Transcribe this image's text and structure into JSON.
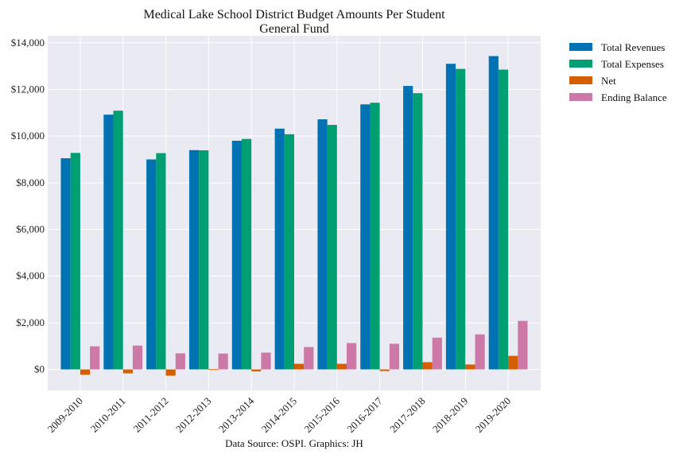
{
  "chart_data": {
    "type": "bar",
    "title": "Medical Lake School District Budget Amounts Per Student",
    "subtitle": "General Fund",
    "xlabel": "",
    "ylabel": "",
    "ylim": [
      -900,
      14300
    ],
    "yticks": [
      0,
      2000,
      4000,
      6000,
      8000,
      10000,
      12000,
      14000
    ],
    "ytick_labels": [
      "$0",
      "$2,000",
      "$4,000",
      "$6,000",
      "$8,000",
      "$10,000",
      "$12,000",
      "$14,000"
    ],
    "categories": [
      "2009-2010",
      "2010-2011",
      "2011-2012",
      "2012-2013",
      "2013-2014",
      "2014-2015",
      "2015-2016",
      "2016-2017",
      "2017-2018",
      "2018-2019",
      "2019-2020"
    ],
    "series": [
      {
        "name": "Total Revenues",
        "color": "#0072B2",
        "values": [
          9050,
          10920,
          9000,
          9400,
          9800,
          10320,
          10720,
          11360,
          12150,
          13100,
          13430
        ]
      },
      {
        "name": "Total Expenses",
        "color": "#009E73",
        "values": [
          9280,
          11090,
          9270,
          9390,
          9880,
          10080,
          10480,
          11430,
          11840,
          12880,
          12850
        ]
      },
      {
        "name": "Net",
        "color": "#D55E00",
        "values": [
          -230,
          -170,
          -270,
          10,
          -80,
          240,
          240,
          -70,
          310,
          210,
          580
        ]
      },
      {
        "name": "Ending Balance",
        "color": "#CC79A7",
        "values": [
          990,
          1020,
          690,
          680,
          720,
          960,
          1130,
          1100,
          1360,
          1500,
          2080
        ]
      }
    ],
    "grid": true,
    "legend_position": "outside-top-right",
    "source_note": "Data Source: OSPI. Graphics: JH"
  }
}
